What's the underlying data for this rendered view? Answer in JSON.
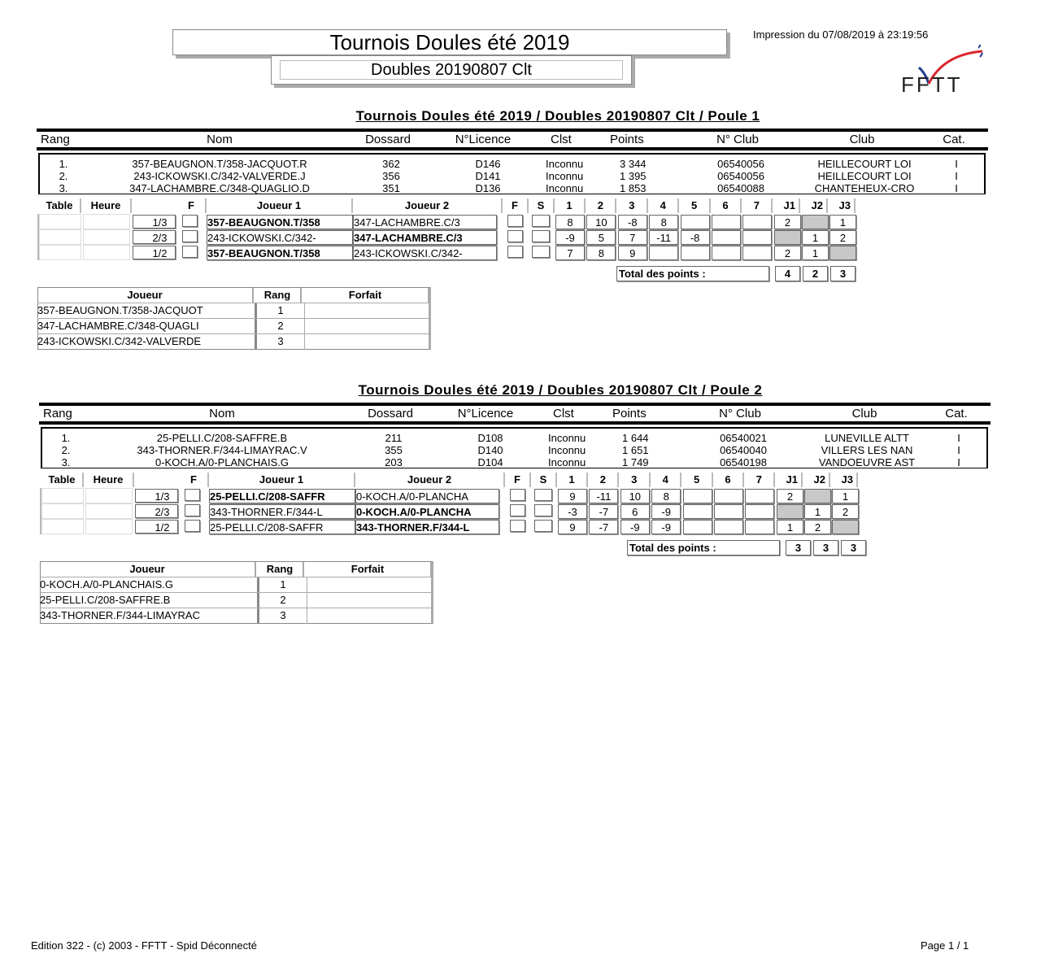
{
  "header": {
    "title": "Tournois Doules été 2019",
    "subtitle": "Doubles 20190807 Clt",
    "printed": "Impression du 07/08/2019 à 23:19:56",
    "logo_text": "FFTT"
  },
  "columns": {
    "rang": "Rang",
    "nom": "Nom",
    "dossard": "Dossard",
    "licence": "N°Licence",
    "clst": "Clst",
    "points": "Points",
    "no_club": "N° Club",
    "club": "Club",
    "cat": "Cat."
  },
  "match_columns": {
    "table": "Table",
    "heure": "Heure",
    "f": "F",
    "joueur1": "Joueur 1",
    "joueur2": "Joueur 2",
    "f2": "F",
    "s": "S",
    "sets": [
      "1",
      "2",
      "3",
      "4",
      "5",
      "6",
      "7"
    ],
    "j": [
      "J1",
      "J2",
      "J3"
    ]
  },
  "total_label": "Total des points :",
  "ranking_columns": {
    "joueur": "Joueur",
    "rang": "Rang",
    "forfait": "Forfait"
  },
  "poules": [
    {
      "title": "Tournois Doules été 2019 / Doubles 20190807 Clt / Poule 1",
      "players": [
        {
          "rang": "1.",
          "nom": "357-BEAUGNON.T/358-JACQUOT.R",
          "dossard": "362",
          "licence": "D146",
          "clst": "Inconnu",
          "points": "3 344",
          "no_club": "06540056",
          "club": "HEILLECOURT LOI",
          "cat": "I"
        },
        {
          "rang": "2.",
          "nom": "243-ICKOWSKI.C/342-VALVERDE.J",
          "dossard": "356",
          "licence": "D141",
          "clst": "Inconnu",
          "points": "1 395",
          "no_club": "06540056",
          "club": "HEILLECOURT LOI",
          "cat": "I"
        },
        {
          "rang": "3.",
          "nom": "347-LACHAMBRE.C/348-QUAGLIO.D",
          "dossard": "351",
          "licence": "D136",
          "clst": "Inconnu",
          "points": "1 853",
          "no_club": "06540088",
          "club": "CHANTEHEUX-CRO",
          "cat": "I"
        }
      ],
      "matches": [
        {
          "pair": "1/3",
          "j1": "357-BEAUGNON.T/358",
          "j2": "347-LACHAMBRE.C/3",
          "winner": 1,
          "sets": [
            "8",
            "10",
            "-8",
            "8",
            "",
            "",
            ""
          ],
          "j": [
            "2",
            "",
            "1"
          ],
          "grey": 1
        },
        {
          "pair": "2/3",
          "j1": "243-ICKOWSKI.C/342-",
          "j2": "347-LACHAMBRE.C/3",
          "winner": 2,
          "sets": [
            "-9",
            "5",
            "7",
            "-11",
            "-8",
            "",
            ""
          ],
          "j": [
            "",
            "1",
            "2"
          ],
          "grey": 0
        },
        {
          "pair": "1/2",
          "j1": "357-BEAUGNON.T/358",
          "j2": "243-ICKOWSKI.C/342-",
          "winner": 1,
          "sets": [
            "7",
            "8",
            "9",
            "",
            "",
            "",
            ""
          ],
          "j": [
            "2",
            "1",
            ""
          ],
          "grey": 2
        }
      ],
      "totals": [
        "4",
        "2",
        "3"
      ],
      "ranking": [
        {
          "joueur": "357-BEAUGNON.T/358-JACQUOT",
          "rang": "1",
          "forfait": ""
        },
        {
          "joueur": "347-LACHAMBRE.C/348-QUAGLI",
          "rang": "2",
          "forfait": ""
        },
        {
          "joueur": "243-ICKOWSKI.C/342-VALVERDE",
          "rang": "3",
          "forfait": ""
        }
      ]
    },
    {
      "title": "Tournois Doules été 2019 / Doubles 20190807 Clt / Poule 2",
      "players": [
        {
          "rang": "1.",
          "nom": "25-PELLI.C/208-SAFFRE.B",
          "dossard": "211",
          "licence": "D108",
          "clst": "Inconnu",
          "points": "1 644",
          "no_club": "06540021",
          "club": "LUNEVILLE ALTT",
          "cat": "I"
        },
        {
          "rang": "2.",
          "nom": "343-THORNER.F/344-LIMAYRAC.V",
          "dossard": "355",
          "licence": "D140",
          "clst": "Inconnu",
          "points": "1 651",
          "no_club": "06540040",
          "club": "VILLERS LES NAN",
          "cat": "I"
        },
        {
          "rang": "3.",
          "nom": "0-KOCH.A/0-PLANCHAIS.G",
          "dossard": "203",
          "licence": "D104",
          "clst": "Inconnu",
          "points": "1 749",
          "no_club": "06540198",
          "club": "VANDOEUVRE AST",
          "cat": "I"
        }
      ],
      "matches": [
        {
          "pair": "1/3",
          "j1": "25-PELLI.C/208-SAFFR",
          "j2": "0-KOCH.A/0-PLANCHA",
          "winner": 1,
          "sets": [
            "9",
            "-11",
            "10",
            "8",
            "",
            "",
            ""
          ],
          "j": [
            "2",
            "",
            "1"
          ],
          "grey": 1
        },
        {
          "pair": "2/3",
          "j1": "343-THORNER.F/344-L",
          "j2": "0-KOCH.A/0-PLANCHA",
          "winner": 2,
          "sets": [
            "-3",
            "-7",
            "6",
            "-9",
            "",
            "",
            ""
          ],
          "j": [
            "",
            "1",
            "2"
          ],
          "grey": 0
        },
        {
          "pair": "1/2",
          "j1": "25-PELLI.C/208-SAFFR",
          "j2": "343-THORNER.F/344-L",
          "winner": 2,
          "sets": [
            "9",
            "-7",
            "-9",
            "-9",
            "",
            "",
            ""
          ],
          "j": [
            "1",
            "2",
            ""
          ],
          "grey": 2
        }
      ],
      "totals": [
        "3",
        "3",
        "3"
      ],
      "ranking": [
        {
          "joueur": "0-KOCH.A/0-PLANCHAIS.G",
          "rang": "1",
          "forfait": ""
        },
        {
          "joueur": "25-PELLI.C/208-SAFFRE.B",
          "rang": "2",
          "forfait": ""
        },
        {
          "joueur": "343-THORNER.F/344-LIMAYRAC",
          "rang": "3",
          "forfait": ""
        }
      ]
    }
  ],
  "footer": {
    "left": "Edition 322 - (c) 2003 - FFTT - Spid Déconnecté",
    "right": "Page 1 / 1"
  },
  "colors": {
    "logo_red": "#d9262e",
    "logo_blue": "#1f3f8f",
    "grey_cell": "#c8c8c8"
  }
}
